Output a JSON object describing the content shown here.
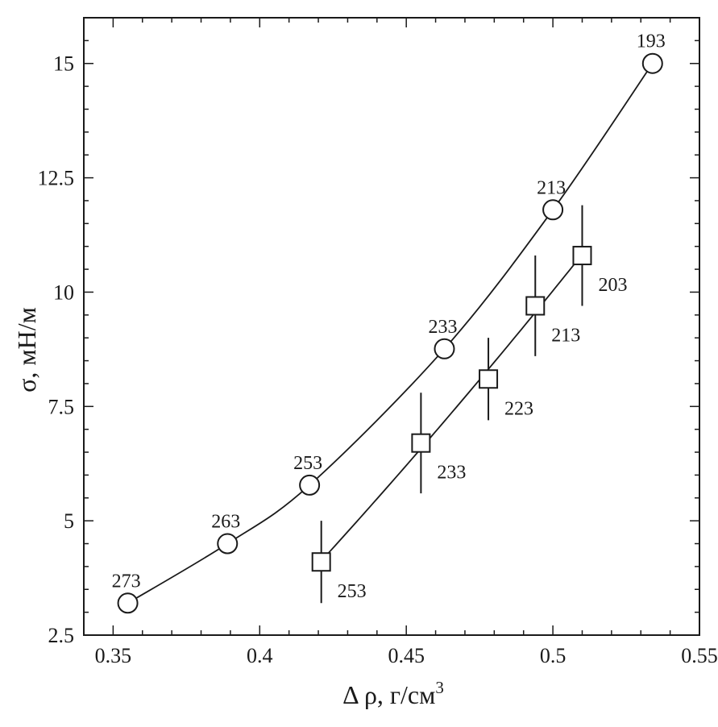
{
  "chart_data": {
    "type": "scatter",
    "xlabel": "Δ ρ, г/см",
    "xlabel_superscript": "3",
    "ylabel": "σ, мН/м",
    "xlim": [
      0.34,
      0.55
    ],
    "ylim": [
      2.5,
      16.0
    ],
    "xticks": [
      "0.35",
      "0.4",
      "0.45",
      "0.5",
      "0.55"
    ],
    "yticks": [
      "2.5",
      "5",
      "7.5",
      "10",
      "12.5",
      "15"
    ],
    "grid": false,
    "series": [
      {
        "marker": "circle",
        "points": [
          {
            "x": 0.355,
            "y": 3.2,
            "label": "273"
          },
          {
            "x": 0.389,
            "y": 4.5,
            "label": "263"
          },
          {
            "x": 0.417,
            "y": 5.78,
            "label": "253"
          },
          {
            "x": 0.463,
            "y": 8.76,
            "label": "233"
          },
          {
            "x": 0.5,
            "y": 11.8,
            "label": "213"
          },
          {
            "x": 0.534,
            "y": 15.0,
            "label": "193"
          }
        ],
        "fit_curve": true
      },
      {
        "marker": "square",
        "points": [
          {
            "x": 0.421,
            "y": 4.1,
            "yerr": 0.9,
            "label": "253"
          },
          {
            "x": 0.455,
            "y": 6.7,
            "yerr": 1.1,
            "label": "233"
          },
          {
            "x": 0.478,
            "y": 8.1,
            "yerr": 0.9,
            "label": "223"
          },
          {
            "x": 0.494,
            "y": 9.7,
            "yerr": 1.1,
            "label": "213"
          },
          {
            "x": 0.51,
            "y": 10.8,
            "yerr": 1.1,
            "label": "203"
          }
        ],
        "fit_curve": true,
        "fit_range": [
          0.421,
          0.51
        ]
      }
    ]
  }
}
